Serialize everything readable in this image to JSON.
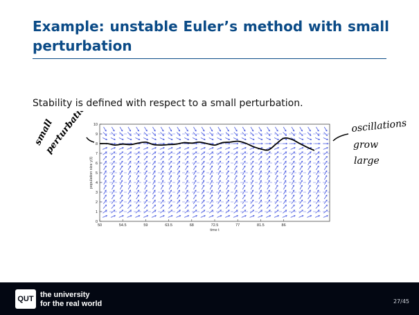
{
  "slide": {
    "title": "Example: unstable Euler’s method with small perturbation",
    "body": "Stability is defined with respect to a small perturbation.",
    "page_number": "27/45"
  },
  "footer": {
    "logo_text": "QUT",
    "tagline_1": "the university",
    "tagline_2": "for the real world"
  },
  "annotations": {
    "left": [
      "small",
      "perturbation"
    ],
    "right": [
      "oscillations",
      "grow",
      "large"
    ]
  },
  "chart_data": {
    "type": "line",
    "xlabel": "time t",
    "ylabel": "population size y(t)",
    "xlim": [
      50,
      95
    ],
    "ylim": [
      0,
      10
    ],
    "x_ticks": [
      "50",
      "54.5",
      "59",
      "63.5",
      "68",
      "72.5",
      "77",
      "81.5",
      "86"
    ],
    "x_tick_values": [
      50,
      54.5,
      59,
      63.5,
      68,
      72.5,
      77,
      81.5,
      86
    ],
    "y_ticks": [
      "0",
      "1",
      "2",
      "3",
      "4",
      "5",
      "6",
      "7",
      "8",
      "9",
      "10"
    ],
    "equilibrium": 8,
    "grid": "horizontal dashed",
    "series": [
      {
        "x": [
          50,
          51.5,
          53,
          54.5,
          56,
          57.5,
          59,
          60.5,
          62,
          63.5,
          65,
          66.5,
          68,
          69.5,
          71,
          72.5,
          74,
          75.5,
          77,
          78.5,
          80,
          81.5,
          83,
          84.5,
          86,
          87.5,
          89,
          90.5,
          92
        ],
        "values": [
          8.0,
          8.0,
          7.85,
          7.95,
          7.9,
          8.05,
          8.15,
          7.9,
          7.85,
          7.9,
          7.95,
          8.1,
          8.05,
          8.15,
          8.0,
          7.85,
          8.1,
          8.15,
          8.25,
          8.05,
          7.7,
          7.45,
          7.35,
          7.95,
          8.55,
          8.45,
          8.05,
          7.65,
          7.3
        ]
      }
    ]
  }
}
